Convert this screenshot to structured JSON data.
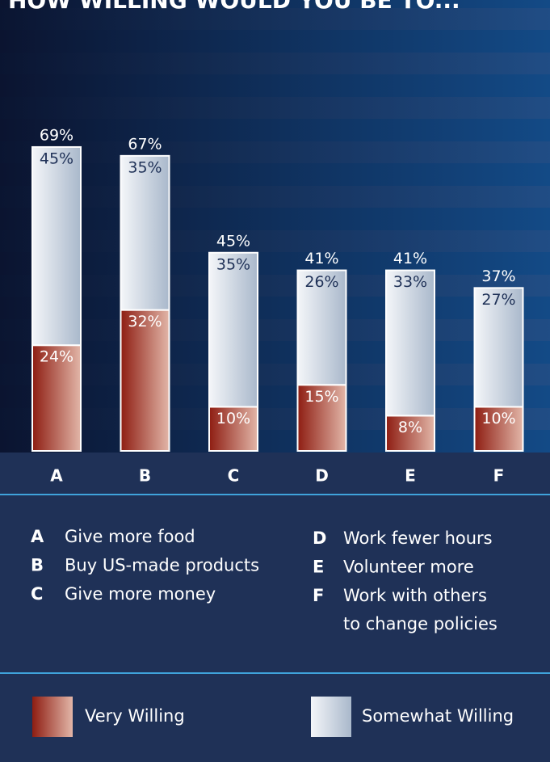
{
  "chart_data": {
    "type": "stacked_bar",
    "title": "HOW WILLING WOULD YOU BE TO...",
    "categories": [
      "A",
      "B",
      "C",
      "D",
      "E",
      "F"
    ],
    "series": [
      {
        "name": "Very Willing",
        "color": "#8e1d12",
        "values": [
          24,
          32,
          10,
          15,
          8,
          10
        ],
        "value_labels": [
          "24%",
          "32%",
          "10%",
          "15%",
          "8%",
          "10%"
        ]
      },
      {
        "name": "Somewhat Willing",
        "color": "#f4f6f9",
        "values": [
          45,
          35,
          35,
          26,
          33,
          27
        ],
        "value_labels": [
          "45%",
          "35%",
          "35%",
          "26%",
          "33%",
          "27%"
        ]
      }
    ],
    "total_labels": [
      "69%",
      "67%",
      "45%",
      "41%",
      "41%",
      "37%"
    ],
    "category_descriptions": [
      "Give more food",
      "Buy US-made products",
      "Give more money",
      "Work fewer hours",
      "Volunteer more",
      [
        "Work with others",
        "to change policies"
      ]
    ]
  }
}
